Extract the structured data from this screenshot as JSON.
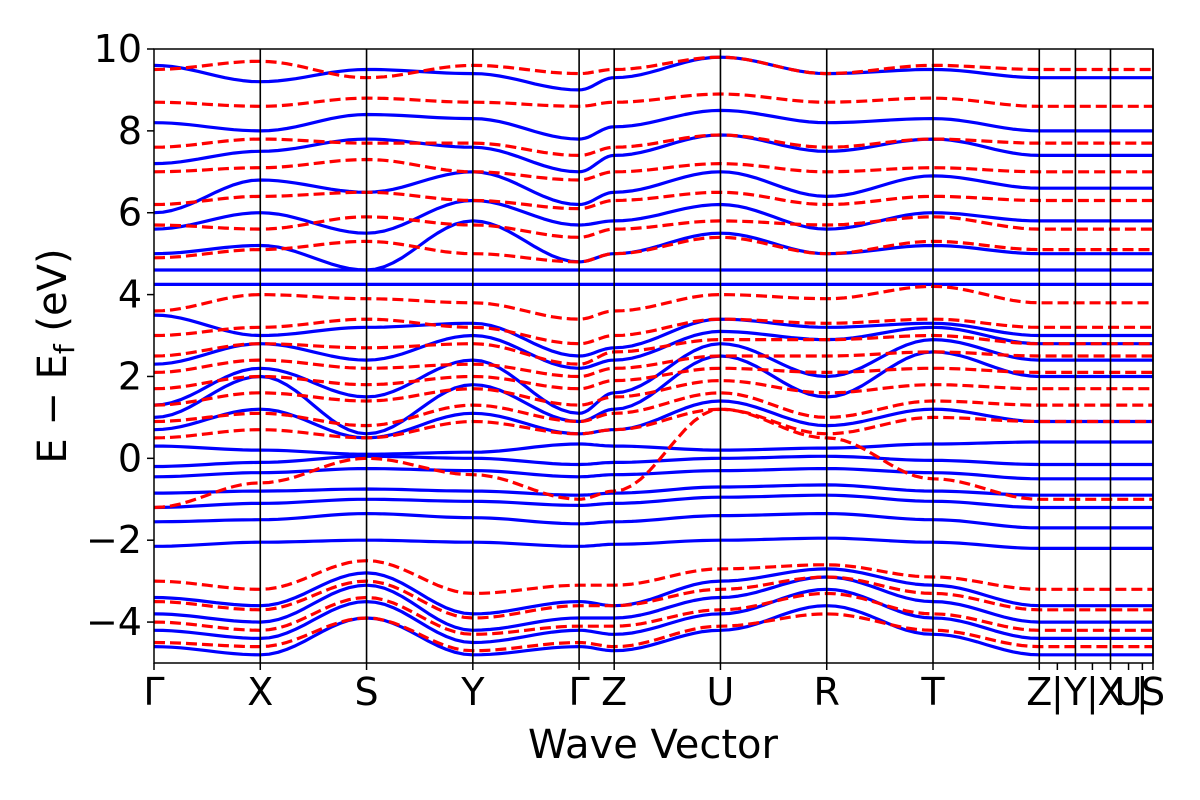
{
  "chart_data": {
    "type": "line",
    "title": "",
    "xlabel": "Wave Vector",
    "ylabel": "E − E",
    "ylabel_subscript": "f",
    "ylabel_unit": " (eV)",
    "ylim": [
      -5,
      10
    ],
    "yticks": [
      {
        "value": -4,
        "label": "−4"
      },
      {
        "value": -2,
        "label": "−2"
      },
      {
        "value": 0,
        "label": "0"
      },
      {
        "value": 2,
        "label": "2"
      },
      {
        "value": 4,
        "label": "4"
      },
      {
        "value": 6,
        "label": "6"
      },
      {
        "value": 8,
        "label": "8"
      },
      {
        "value": 10,
        "label": "10"
      }
    ],
    "xlim": [
      0,
      9.4
    ],
    "kpoints": [
      {
        "x": 0.0,
        "label": "Γ"
      },
      {
        "x": 1.0,
        "label": "X"
      },
      {
        "x": 2.0,
        "label": "S"
      },
      {
        "x": 3.0,
        "label": "Y"
      },
      {
        "x": 4.0,
        "label": "Γ"
      },
      {
        "x": 4.33,
        "label": "Z"
      },
      {
        "x": 5.33,
        "label": "U"
      },
      {
        "x": 6.33,
        "label": "R"
      },
      {
        "x": 7.33,
        "label": "T"
      },
      {
        "x": 8.33,
        "label": "Z"
      },
      {
        "x": 8.5,
        "label": "|"
      },
      {
        "x": 8.67,
        "label": "Y"
      },
      {
        "x": 8.83,
        "label": "|"
      },
      {
        "x": 9.0,
        "label": "X"
      },
      {
        "x": 9.17,
        "label": "U"
      },
      {
        "x": 9.3,
        "label": "|"
      },
      {
        "x": 9.4,
        "label": "S"
      }
    ],
    "separators": [
      1.0,
      2.0,
      3.0,
      4.0,
      4.33,
      5.33,
      6.33,
      7.33,
      8.33,
      8.67,
      9.0,
      9.4
    ],
    "series": [
      {
        "style": "solid",
        "color": "#0000ff",
        "bands": [
          [
            -2.15,
            -2.05,
            -2.0,
            -2.05,
            -2.15,
            -2.1,
            -2.0,
            -1.95,
            -2.05,
            -2.2
          ],
          [
            -1.55,
            -1.5,
            -1.35,
            -1.45,
            -1.6,
            -1.55,
            -1.4,
            -1.35,
            -1.5,
            -1.7
          ],
          [
            -1.2,
            -1.1,
            -1.0,
            -1.05,
            -1.15,
            -1.1,
            -0.95,
            -0.9,
            -1.05,
            -1.2
          ],
          [
            -0.85,
            -0.8,
            -0.75,
            -0.8,
            -0.9,
            -0.85,
            -0.7,
            -0.65,
            -0.8,
            -0.9
          ],
          [
            -0.45,
            -0.35,
            -0.25,
            -0.3,
            -0.45,
            -0.4,
            -0.3,
            -0.25,
            -0.35,
            -0.5
          ],
          [
            -0.2,
            -0.1,
            0.05,
            0.0,
            -0.15,
            -0.1,
            0.0,
            0.05,
            -0.05,
            -0.15
          ],
          [
            0.3,
            0.2,
            0.1,
            0.15,
            0.35,
            0.3,
            0.2,
            0.25,
            0.35,
            0.4
          ],
          [
            0.7,
            1.2,
            0.5,
            1.1,
            0.6,
            0.7,
            1.4,
            0.8,
            1.2,
            0.9
          ],
          [
            1.0,
            2.0,
            0.6,
            1.8,
            0.9,
            1.2,
            2.5,
            1.5,
            2.6,
            2.0
          ],
          [
            1.3,
            2.2,
            1.5,
            2.4,
            1.1,
            1.6,
            2.8,
            2.0,
            2.9,
            2.4
          ],
          [
            2.3,
            2.8,
            2.4,
            3.0,
            2.2,
            2.4,
            3.1,
            2.9,
            3.2,
            2.8
          ],
          [
            3.5,
            3.0,
            3.2,
            3.3,
            2.5,
            2.7,
            3.4,
            3.2,
            3.3,
            3.0
          ],
          [
            4.25,
            4.25,
            4.25,
            4.25,
            4.25,
            4.25,
            4.25,
            4.25,
            4.25,
            4.25
          ],
          [
            4.6,
            4.6,
            4.6,
            4.6,
            4.6,
            4.6,
            4.6,
            4.6,
            4.6,
            4.6
          ],
          [
            5.0,
            5.2,
            4.6,
            5.8,
            4.8,
            5.0,
            5.5,
            5.0,
            5.2,
            5.0
          ],
          [
            5.6,
            6.0,
            5.5,
            6.3,
            5.7,
            5.8,
            6.2,
            5.6,
            6.0,
            5.8
          ],
          [
            6.0,
            6.8,
            6.5,
            7.0,
            6.2,
            6.5,
            7.0,
            6.4,
            6.9,
            6.6
          ],
          [
            7.2,
            7.5,
            7.8,
            7.6,
            7.0,
            7.4,
            7.9,
            7.5,
            7.8,
            7.4
          ],
          [
            8.2,
            8.0,
            8.4,
            8.3,
            7.8,
            8.1,
            8.5,
            8.2,
            8.3,
            8.0
          ],
          [
            9.6,
            9.2,
            9.5,
            9.4,
            9.0,
            9.3,
            9.8,
            9.4,
            9.5,
            9.3
          ],
          [
            -3.4,
            -3.6,
            -2.8,
            -3.8,
            -3.5,
            -3.6,
            -3.0,
            -2.7,
            -3.1,
            -3.6
          ],
          [
            -3.8,
            -4.0,
            -3.1,
            -4.2,
            -3.9,
            -3.9,
            -3.4,
            -2.9,
            -3.5,
            -4.0
          ],
          [
            -4.2,
            -4.4,
            -3.5,
            -4.5,
            -4.2,
            -4.3,
            -3.8,
            -3.2,
            -3.9,
            -4.4
          ],
          [
            -4.6,
            -4.8,
            -3.9,
            -4.8,
            -4.6,
            -4.7,
            -4.2,
            -3.6,
            -4.3,
            -4.8
          ]
        ]
      },
      {
        "style": "dashed",
        "color": "#ff0000",
        "bands": [
          [
            -1.2,
            -0.6,
            0.0,
            -0.4,
            -1.0,
            -0.8,
            1.2,
            0.5,
            -0.5,
            -1.0
          ],
          [
            0.5,
            0.7,
            0.5,
            0.9,
            0.6,
            0.7,
            1.2,
            0.6,
            1.0,
            0.9
          ],
          [
            0.9,
            1.1,
            0.8,
            1.3,
            0.9,
            1.1,
            1.6,
            1.0,
            1.4,
            1.3
          ],
          [
            1.3,
            1.6,
            1.4,
            1.7,
            1.3,
            1.5,
            1.9,
            1.6,
            1.8,
            1.7
          ],
          [
            1.7,
            2.0,
            1.8,
            2.0,
            1.7,
            1.9,
            2.2,
            2.1,
            2.2,
            2.1
          ],
          [
            2.1,
            2.4,
            2.2,
            2.3,
            2.0,
            2.2,
            2.5,
            2.5,
            2.6,
            2.5
          ],
          [
            2.5,
            2.8,
            2.7,
            2.8,
            2.3,
            2.6,
            2.9,
            2.9,
            3.0,
            2.8
          ],
          [
            3.0,
            3.2,
            3.4,
            3.2,
            2.8,
            3.0,
            3.4,
            3.3,
            3.4,
            3.2
          ],
          [
            3.6,
            4.0,
            3.9,
            3.8,
            3.4,
            3.6,
            4.0,
            3.9,
            4.2,
            3.8
          ],
          [
            4.9,
            5.1,
            5.3,
            5.0,
            4.8,
            5.0,
            5.4,
            5.0,
            5.3,
            5.1
          ],
          [
            5.7,
            5.6,
            5.9,
            5.7,
            5.4,
            5.6,
            5.8,
            5.7,
            5.9,
            5.6
          ],
          [
            6.2,
            6.4,
            6.5,
            6.3,
            6.1,
            6.3,
            6.5,
            6.2,
            6.4,
            6.3
          ],
          [
            7.0,
            7.1,
            7.3,
            7.0,
            6.8,
            7.0,
            7.2,
            7.0,
            7.1,
            7.0
          ],
          [
            7.6,
            7.8,
            7.7,
            7.7,
            7.4,
            7.6,
            7.9,
            7.6,
            7.8,
            7.7
          ],
          [
            8.7,
            8.6,
            8.8,
            8.7,
            8.6,
            8.7,
            8.9,
            8.7,
            8.8,
            8.6
          ],
          [
            9.5,
            9.7,
            9.3,
            9.6,
            9.4,
            9.5,
            9.8,
            9.4,
            9.6,
            9.5
          ],
          [
            -3.0,
            -3.2,
            -2.5,
            -3.3,
            -3.1,
            -3.1,
            -2.7,
            -2.6,
            -2.9,
            -3.2
          ],
          [
            -3.5,
            -3.7,
            -3.0,
            -3.9,
            -3.6,
            -3.6,
            -3.2,
            -2.9,
            -3.3,
            -3.7
          ],
          [
            -4.0,
            -4.2,
            -3.4,
            -4.3,
            -4.1,
            -4.1,
            -3.7,
            -3.3,
            -3.8,
            -4.2
          ],
          [
            -4.5,
            -4.6,
            -3.9,
            -4.7,
            -4.5,
            -4.6,
            -4.1,
            -3.8,
            -4.2,
            -4.6
          ]
        ]
      }
    ]
  }
}
